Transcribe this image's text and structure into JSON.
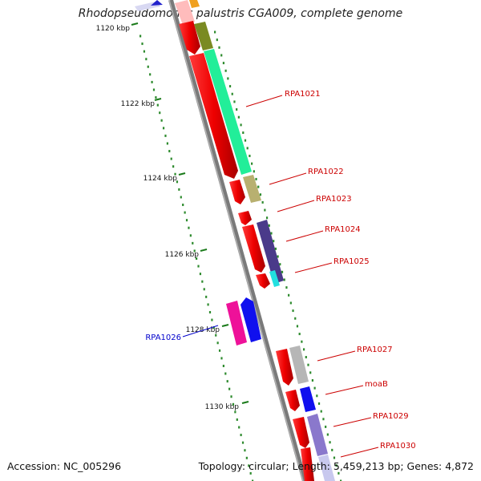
{
  "title": "Rhodopseudomonas palustris CGA009, complete genome",
  "footer": {
    "accession": "Accession: NC_005296",
    "summary": "Topology: circular; Length: 5,459,213 bp; Genes: 4,872"
  },
  "ticks": [
    {
      "label": "1120 kbp",
      "value_kbp": 1120
    },
    {
      "label": "1122 kbp",
      "value_kbp": 1122
    },
    {
      "label": "1124 kbp",
      "value_kbp": 1124
    },
    {
      "label": "1126 kbp",
      "value_kbp": 1126
    },
    {
      "label": "1128 kbp",
      "value_kbp": 1128
    },
    {
      "label": "1130 kbp",
      "value_kbp": 1130
    }
  ],
  "gene_labels": [
    {
      "label": "RPA1021",
      "color": "#cc0000"
    },
    {
      "label": "RPA1022",
      "color": "#cc0000"
    },
    {
      "label": "RPA1023",
      "color": "#cc0000"
    },
    {
      "label": "RPA1024",
      "color": "#cc0000"
    },
    {
      "label": "RPA1025",
      "color": "#cc0000"
    },
    {
      "label": "RPA1026",
      "color": "#0000cc"
    },
    {
      "label": "RPA1027",
      "color": "#cc0000"
    },
    {
      "label": "moaB",
      "color": "#cc0000"
    },
    {
      "label": "RPA1029",
      "color": "#cc0000"
    },
    {
      "label": "RPA1030",
      "color": "#cc0000"
    }
  ],
  "colors": {
    "backbone": "#777777",
    "forward_gene": "#ee0000",
    "tick_major": "#1a7a1a",
    "tick_minor": "#2e8b2e"
  }
}
